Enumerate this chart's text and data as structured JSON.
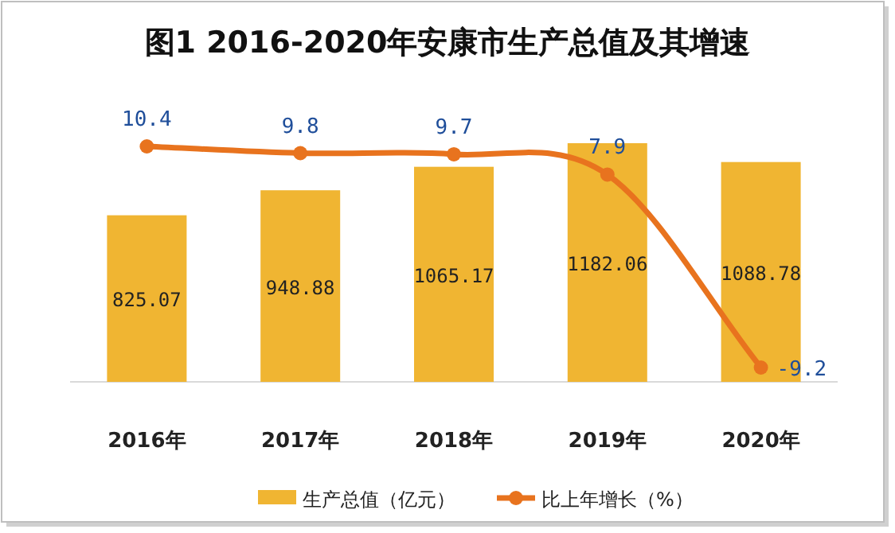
{
  "chart_data": {
    "type": "bar",
    "title": "图1 2016-2020年安康市生产总值及其增速",
    "categories": [
      "2016年",
      "2017年",
      "2018年",
      "2019年",
      "2020年"
    ],
    "series": [
      {
        "name": "生产总值（亿元）",
        "color": "#f0b532",
        "values": [
          825.07,
          948.88,
          1065.17,
          1182.06,
          1088.78
        ]
      },
      {
        "name": "比上年增长（%）",
        "type": "line",
        "axis": "y2",
        "color": "#e8731e",
        "values": [
          10.4,
          9.8,
          9.7,
          7.9,
          -9.2
        ]
      }
    ],
    "marker": "circle",
    "data_labels": true,
    "legend": "bottom"
  }
}
